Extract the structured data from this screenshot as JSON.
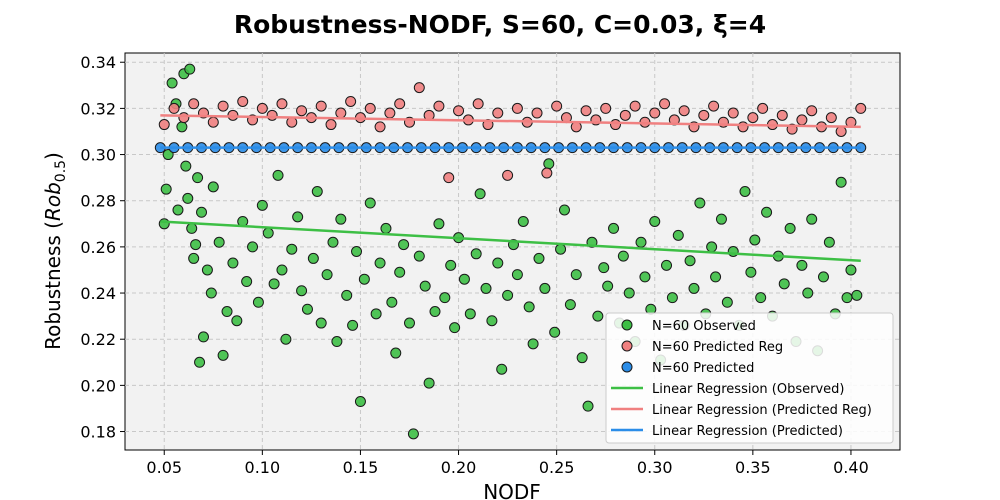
{
  "chart_data": {
    "type": "scatter",
    "title": "Robustness-NODF, S=60, C=0.03, ξ=4",
    "xlabel": "NODF",
    "ylabel": "Robustness (Rob0.5)",
    "xlim": [
      0.03,
      0.425
    ],
    "ylim": [
      0.172,
      0.344
    ],
    "xticks": [
      "0.05",
      "0.10",
      "0.15",
      "0.20",
      "0.25",
      "0.30",
      "0.35",
      "0.40"
    ],
    "yticks": [
      "0.18",
      "0.20",
      "0.22",
      "0.24",
      "0.26",
      "0.28",
      "0.30",
      "0.32",
      "0.34"
    ],
    "grid": true,
    "legend_position": "lower-right",
    "series": [
      {
        "name": "N=60 Observed",
        "kind": "scatter",
        "color": "#3dbf45",
        "points": [
          [
            0.05,
            0.27
          ],
          [
            0.051,
            0.285
          ],
          [
            0.052,
            0.3
          ],
          [
            0.054,
            0.331
          ],
          [
            0.056,
            0.322
          ],
          [
            0.057,
            0.276
          ],
          [
            0.059,
            0.312
          ],
          [
            0.06,
            0.335
          ],
          [
            0.061,
            0.295
          ],
          [
            0.062,
            0.281
          ],
          [
            0.063,
            0.337
          ],
          [
            0.064,
            0.268
          ],
          [
            0.065,
            0.255
          ],
          [
            0.066,
            0.261
          ],
          [
            0.067,
            0.29
          ],
          [
            0.068,
            0.21
          ],
          [
            0.069,
            0.275
          ],
          [
            0.07,
            0.221
          ],
          [
            0.072,
            0.25
          ],
          [
            0.074,
            0.24
          ],
          [
            0.075,
            0.286
          ],
          [
            0.078,
            0.262
          ],
          [
            0.08,
            0.213
          ],
          [
            0.082,
            0.232
          ],
          [
            0.085,
            0.253
          ],
          [
            0.087,
            0.228
          ],
          [
            0.09,
            0.271
          ],
          [
            0.092,
            0.245
          ],
          [
            0.095,
            0.26
          ],
          [
            0.098,
            0.236
          ],
          [
            0.1,
            0.278
          ],
          [
            0.103,
            0.266
          ],
          [
            0.106,
            0.244
          ],
          [
            0.108,
            0.291
          ],
          [
            0.11,
            0.25
          ],
          [
            0.112,
            0.22
          ],
          [
            0.115,
            0.259
          ],
          [
            0.118,
            0.273
          ],
          [
            0.12,
            0.241
          ],
          [
            0.123,
            0.233
          ],
          [
            0.126,
            0.255
          ],
          [
            0.128,
            0.284
          ],
          [
            0.13,
            0.227
          ],
          [
            0.133,
            0.248
          ],
          [
            0.136,
            0.262
          ],
          [
            0.138,
            0.219
          ],
          [
            0.14,
            0.272
          ],
          [
            0.143,
            0.239
          ],
          [
            0.146,
            0.226
          ],
          [
            0.148,
            0.258
          ],
          [
            0.15,
            0.193
          ],
          [
            0.152,
            0.246
          ],
          [
            0.155,
            0.279
          ],
          [
            0.158,
            0.231
          ],
          [
            0.16,
            0.253
          ],
          [
            0.163,
            0.268
          ],
          [
            0.166,
            0.236
          ],
          [
            0.168,
            0.214
          ],
          [
            0.17,
            0.249
          ],
          [
            0.172,
            0.261
          ],
          [
            0.175,
            0.227
          ],
          [
            0.177,
            0.179
          ],
          [
            0.18,
            0.256
          ],
          [
            0.183,
            0.243
          ],
          [
            0.185,
            0.201
          ],
          [
            0.188,
            0.232
          ],
          [
            0.19,
            0.27
          ],
          [
            0.193,
            0.238
          ],
          [
            0.196,
            0.252
          ],
          [
            0.198,
            0.225
          ],
          [
            0.2,
            0.264
          ],
          [
            0.203,
            0.246
          ],
          [
            0.206,
            0.231
          ],
          [
            0.209,
            0.257
          ],
          [
            0.211,
            0.283
          ],
          [
            0.214,
            0.242
          ],
          [
            0.217,
            0.228
          ],
          [
            0.22,
            0.253
          ],
          [
            0.222,
            0.207
          ],
          [
            0.225,
            0.239
          ],
          [
            0.228,
            0.261
          ],
          [
            0.23,
            0.248
          ],
          [
            0.233,
            0.271
          ],
          [
            0.236,
            0.234
          ],
          [
            0.238,
            0.218
          ],
          [
            0.241,
            0.255
          ],
          [
            0.244,
            0.242
          ],
          [
            0.246,
            0.296
          ],
          [
            0.249,
            0.223
          ],
          [
            0.252,
            0.259
          ],
          [
            0.254,
            0.276
          ],
          [
            0.257,
            0.235
          ],
          [
            0.26,
            0.248
          ],
          [
            0.263,
            0.212
          ],
          [
            0.266,
            0.191
          ],
          [
            0.268,
            0.262
          ],
          [
            0.271,
            0.23
          ],
          [
            0.274,
            0.251
          ],
          [
            0.276,
            0.243
          ],
          [
            0.279,
            0.268
          ],
          [
            0.282,
            0.227
          ],
          [
            0.284,
            0.256
          ],
          [
            0.287,
            0.24
          ],
          [
            0.29,
            0.219
          ],
          [
            0.293,
            0.262
          ],
          [
            0.295,
            0.247
          ],
          [
            0.298,
            0.233
          ],
          [
            0.3,
            0.271
          ],
          [
            0.303,
            0.211
          ],
          [
            0.306,
            0.252
          ],
          [
            0.309,
            0.238
          ],
          [
            0.312,
            0.265
          ],
          [
            0.315,
            0.226
          ],
          [
            0.318,
            0.254
          ],
          [
            0.32,
            0.242
          ],
          [
            0.323,
            0.279
          ],
          [
            0.326,
            0.231
          ],
          [
            0.329,
            0.26
          ],
          [
            0.331,
            0.247
          ],
          [
            0.334,
            0.272
          ],
          [
            0.337,
            0.236
          ],
          [
            0.34,
            0.258
          ],
          [
            0.343,
            0.226
          ],
          [
            0.346,
            0.284
          ],
          [
            0.349,
            0.249
          ],
          [
            0.351,
            0.263
          ],
          [
            0.354,
            0.238
          ],
          [
            0.357,
            0.275
          ],
          [
            0.36,
            0.23
          ],
          [
            0.363,
            0.256
          ],
          [
            0.366,
            0.244
          ],
          [
            0.369,
            0.268
          ],
          [
            0.372,
            0.219
          ],
          [
            0.375,
            0.252
          ],
          [
            0.378,
            0.24
          ],
          [
            0.38,
            0.272
          ],
          [
            0.383,
            0.215
          ],
          [
            0.386,
            0.247
          ],
          [
            0.389,
            0.262
          ],
          [
            0.392,
            0.231
          ],
          [
            0.395,
            0.288
          ],
          [
            0.398,
            0.238
          ],
          [
            0.4,
            0.25
          ],
          [
            0.403,
            0.239
          ]
        ]
      },
      {
        "name": "N=60 Predicted Reg",
        "kind": "scatter",
        "color": "#f08080",
        "points": [
          [
            0.05,
            0.313
          ],
          [
            0.055,
            0.32
          ],
          [
            0.06,
            0.316
          ],
          [
            0.065,
            0.322
          ],
          [
            0.07,
            0.318
          ],
          [
            0.075,
            0.314
          ],
          [
            0.08,
            0.321
          ],
          [
            0.085,
            0.317
          ],
          [
            0.09,
            0.323
          ],
          [
            0.095,
            0.315
          ],
          [
            0.1,
            0.32
          ],
          [
            0.105,
            0.317
          ],
          [
            0.11,
            0.322
          ],
          [
            0.115,
            0.314
          ],
          [
            0.12,
            0.319
          ],
          [
            0.125,
            0.316
          ],
          [
            0.13,
            0.321
          ],
          [
            0.135,
            0.313
          ],
          [
            0.14,
            0.318
          ],
          [
            0.145,
            0.323
          ],
          [
            0.15,
            0.316
          ],
          [
            0.155,
            0.32
          ],
          [
            0.16,
            0.312
          ],
          [
            0.165,
            0.318
          ],
          [
            0.17,
            0.322
          ],
          [
            0.175,
            0.314
          ],
          [
            0.18,
            0.329
          ],
          [
            0.185,
            0.317
          ],
          [
            0.19,
            0.321
          ],
          [
            0.195,
            0.29
          ],
          [
            0.2,
            0.319
          ],
          [
            0.205,
            0.315
          ],
          [
            0.21,
            0.322
          ],
          [
            0.215,
            0.313
          ],
          [
            0.22,
            0.318
          ],
          [
            0.225,
            0.291
          ],
          [
            0.23,
            0.32
          ],
          [
            0.235,
            0.314
          ],
          [
            0.24,
            0.318
          ],
          [
            0.245,
            0.292
          ],
          [
            0.25,
            0.321
          ],
          [
            0.255,
            0.316
          ],
          [
            0.26,
            0.312
          ],
          [
            0.265,
            0.319
          ],
          [
            0.27,
            0.315
          ],
          [
            0.275,
            0.32
          ],
          [
            0.28,
            0.313
          ],
          [
            0.285,
            0.317
          ],
          [
            0.29,
            0.321
          ],
          [
            0.295,
            0.314
          ],
          [
            0.3,
            0.318
          ],
          [
            0.305,
            0.322
          ],
          [
            0.31,
            0.315
          ],
          [
            0.315,
            0.319
          ],
          [
            0.32,
            0.312
          ],
          [
            0.325,
            0.317
          ],
          [
            0.33,
            0.321
          ],
          [
            0.335,
            0.314
          ],
          [
            0.34,
            0.318
          ],
          [
            0.345,
            0.312
          ],
          [
            0.35,
            0.316
          ],
          [
            0.355,
            0.32
          ],
          [
            0.36,
            0.313
          ],
          [
            0.365,
            0.317
          ],
          [
            0.37,
            0.311
          ],
          [
            0.375,
            0.315
          ],
          [
            0.38,
            0.319
          ],
          [
            0.385,
            0.312
          ],
          [
            0.39,
            0.316
          ],
          [
            0.395,
            0.31
          ],
          [
            0.4,
            0.314
          ],
          [
            0.405,
            0.32
          ]
        ]
      },
      {
        "name": "N=60 Predicted",
        "kind": "scatter",
        "color": "#2b8de8",
        "points": [
          [
            0.048,
            0.303
          ],
          [
            0.055,
            0.303
          ],
          [
            0.062,
            0.303
          ],
          [
            0.069,
            0.303
          ],
          [
            0.076,
            0.303
          ],
          [
            0.083,
            0.303
          ],
          [
            0.09,
            0.303
          ],
          [
            0.097,
            0.303
          ],
          [
            0.104,
            0.303
          ],
          [
            0.111,
            0.303
          ],
          [
            0.118,
            0.303
          ],
          [
            0.125,
            0.303
          ],
          [
            0.132,
            0.303
          ],
          [
            0.139,
            0.303
          ],
          [
            0.146,
            0.303
          ],
          [
            0.153,
            0.303
          ],
          [
            0.16,
            0.303
          ],
          [
            0.167,
            0.303
          ],
          [
            0.174,
            0.303
          ],
          [
            0.181,
            0.303
          ],
          [
            0.188,
            0.303
          ],
          [
            0.195,
            0.303
          ],
          [
            0.202,
            0.303
          ],
          [
            0.209,
            0.303
          ],
          [
            0.216,
            0.303
          ],
          [
            0.223,
            0.303
          ],
          [
            0.23,
            0.303
          ],
          [
            0.237,
            0.303
          ],
          [
            0.244,
            0.303
          ],
          [
            0.251,
            0.303
          ],
          [
            0.258,
            0.303
          ],
          [
            0.265,
            0.303
          ],
          [
            0.272,
            0.303
          ],
          [
            0.279,
            0.303
          ],
          [
            0.286,
            0.303
          ],
          [
            0.293,
            0.303
          ],
          [
            0.3,
            0.303
          ],
          [
            0.307,
            0.303
          ],
          [
            0.314,
            0.303
          ],
          [
            0.321,
            0.303
          ],
          [
            0.328,
            0.303
          ],
          [
            0.335,
            0.303
          ],
          [
            0.342,
            0.303
          ],
          [
            0.349,
            0.303
          ],
          [
            0.356,
            0.303
          ],
          [
            0.363,
            0.303
          ],
          [
            0.37,
            0.303
          ],
          [
            0.377,
            0.303
          ],
          [
            0.384,
            0.303
          ],
          [
            0.391,
            0.303
          ],
          [
            0.398,
            0.303
          ],
          [
            0.405,
            0.303
          ]
        ]
      },
      {
        "name": "Linear Regression (Observed)",
        "kind": "line",
        "color": "#3dbf45",
        "x": [
          0.048,
          0.405
        ],
        "y": [
          0.271,
          0.254
        ]
      },
      {
        "name": "Linear Regression (Predicted Reg)",
        "kind": "line",
        "color": "#f08080",
        "x": [
          0.048,
          0.405
        ],
        "y": [
          0.317,
          0.312
        ]
      },
      {
        "name": "Linear Regression (Predicted)",
        "kind": "line",
        "color": "#2b8de8",
        "x": [
          0.048,
          0.405
        ],
        "y": [
          0.303,
          0.303
        ]
      }
    ]
  }
}
